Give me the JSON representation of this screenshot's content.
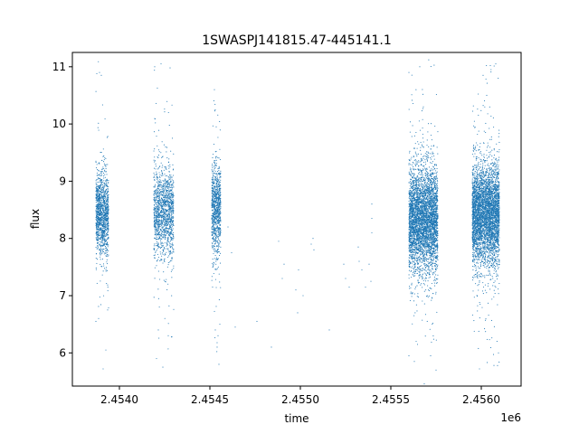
{
  "chart_data": {
    "type": "scatter",
    "title": "1SWASPJ141815.47-445141.1",
    "xlabel": "time",
    "ylabel": "flux",
    "x_offset_label": "1e6",
    "xlim": [
      2453740,
      2456220
    ],
    "ylim": [
      5.42,
      11.25
    ],
    "x_ticks": [
      2454000,
      2454500,
      2455000,
      2455500,
      2456000
    ],
    "x_tick_labels": [
      "2.4540",
      "2.4545",
      "2.4550",
      "2.4555",
      "2.4560"
    ],
    "y_ticks": [
      6,
      7,
      8,
      9,
      10,
      11
    ],
    "y_tick_labels": [
      "6",
      "7",
      "8",
      "9",
      "10",
      "11"
    ],
    "grid": false,
    "marker_color": "#1f77b4",
    "series": [
      {
        "clusters": [
          {
            "x_start": 2453870,
            "x_end": 2453940,
            "y_center": 8.45,
            "y_spread": 0.35,
            "n": 1300
          },
          {
            "x_start": 2454190,
            "x_end": 2454300,
            "y_center": 8.45,
            "y_spread": 0.4,
            "n": 1400
          },
          {
            "x_start": 2454510,
            "x_end": 2454560,
            "y_center": 8.5,
            "y_spread": 0.4,
            "n": 900
          },
          {
            "x_start": 2455600,
            "x_end": 2455760,
            "y_center": 8.35,
            "y_spread": 0.45,
            "n": 4200
          },
          {
            "x_start": 2455950,
            "x_end": 2456100,
            "y_center": 8.4,
            "y_spread": 0.45,
            "n": 4200
          }
        ],
        "points": [
          [
            2453870,
            6.55
          ],
          [
            2453875,
            10.88
          ],
          [
            2453900,
            10.85
          ],
          [
            2453910,
            5.72
          ],
          [
            2453925,
            6.05
          ],
          [
            2453885,
            6.6
          ],
          [
            2453935,
            6.75
          ],
          [
            2453890,
            10.9
          ],
          [
            2454195,
            11.0
          ],
          [
            2454205,
            5.9
          ],
          [
            2454240,
            5.75
          ],
          [
            2454280,
            10.98
          ],
          [
            2454290,
            6.28
          ],
          [
            2454215,
            6.4
          ],
          [
            2454270,
            6.3
          ],
          [
            2454230,
            11.05
          ],
          [
            2454525,
            10.6
          ],
          [
            2454540,
            6.1
          ],
          [
            2454550,
            5.8
          ],
          [
            2454535,
            9.95
          ],
          [
            2454530,
            6.4
          ],
          [
            2454555,
            6.5
          ],
          [
            2454545,
            6.3
          ],
          [
            2454600,
            8.2
          ],
          [
            2454620,
            7.75
          ],
          [
            2454640,
            6.45
          ],
          [
            2454760,
            6.55
          ],
          [
            2454840,
            6.1
          ],
          [
            2454880,
            7.95
          ],
          [
            2454900,
            7.3
          ],
          [
            2454910,
            7.55
          ],
          [
            2454975,
            7.1
          ],
          [
            2454985,
            6.7
          ],
          [
            2454990,
            7.45
          ],
          [
            2455015,
            7.0
          ],
          [
            2455060,
            7.9
          ],
          [
            2455070,
            8.0
          ],
          [
            2455075,
            7.8
          ],
          [
            2455160,
            6.4
          ],
          [
            2455240,
            7.55
          ],
          [
            2455250,
            7.3
          ],
          [
            2455270,
            7.15
          ],
          [
            2455320,
            7.85
          ],
          [
            2455325,
            7.6
          ],
          [
            2455340,
            7.45
          ],
          [
            2455360,
            7.15
          ],
          [
            2455380,
            7.55
          ],
          [
            2455390,
            7.25
          ],
          [
            2455395,
            8.35
          ],
          [
            2455395,
            8.1
          ],
          [
            2455395,
            8.6
          ],
          [
            2455600,
            5.95
          ],
          [
            2455630,
            5.85
          ],
          [
            2455660,
            11.0
          ],
          [
            2455680,
            10.3
          ],
          [
            2455720,
            5.95
          ],
          [
            2455750,
            5.7
          ],
          [
            2455600,
            10.9
          ],
          [
            2455640,
            6.2
          ],
          [
            2455990,
            5.72
          ],
          [
            2456010,
            10.85
          ],
          [
            2456050,
            11.02
          ],
          [
            2456080,
            11.05
          ],
          [
            2456070,
            5.78
          ],
          [
            2456030,
            10.5
          ],
          [
            2456095,
            6.0
          ]
        ]
      }
    ]
  }
}
